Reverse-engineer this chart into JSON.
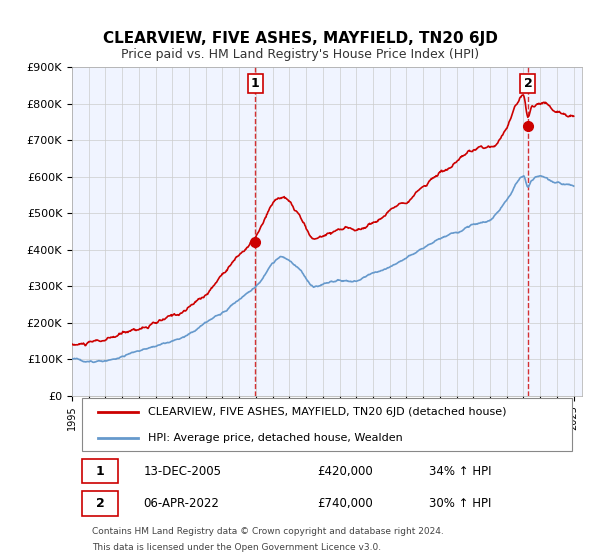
{
  "title": "CLEARVIEW, FIVE ASHES, MAYFIELD, TN20 6JD",
  "subtitle": "Price paid vs. HM Land Registry's House Price Index (HPI)",
  "ylabel": "",
  "ylim": [
    0,
    900000
  ],
  "yticks": [
    0,
    100000,
    200000,
    300000,
    400000,
    500000,
    600000,
    700000,
    800000,
    900000
  ],
  "ytick_labels": [
    "£0",
    "£100K",
    "£200K",
    "£300K",
    "£400K",
    "£500K",
    "£600K",
    "£700K",
    "£800K",
    "£900K"
  ],
  "xlim_start": 1995.0,
  "xlim_end": 2025.5,
  "grid_color": "#cccccc",
  "background_color": "#f0f4ff",
  "plot_bg_color": "#f0f4ff",
  "red_line_color": "#cc0000",
  "blue_line_color": "#6699cc",
  "marker1_x": 2005.95,
  "marker1_y": 420000,
  "marker2_x": 2022.27,
  "marker2_y": 740000,
  "vline1_x": 2005.95,
  "vline2_x": 2022.27,
  "legend_label_red": "CLEARVIEW, FIVE ASHES, MAYFIELD, TN20 6JD (detached house)",
  "legend_label_blue": "HPI: Average price, detached house, Wealden",
  "annotation1_label": "1",
  "annotation2_label": "2",
  "table_row1": [
    "1",
    "13-DEC-2005",
    "£420,000",
    "34% ↑ HPI"
  ],
  "table_row2": [
    "2",
    "06-APR-2022",
    "£740,000",
    "30% ↑ HPI"
  ],
  "footer1": "Contains HM Land Registry data © Crown copyright and database right 2024.",
  "footer2": "This data is licensed under the Open Government Licence v3.0.",
  "title_fontsize": 11,
  "subtitle_fontsize": 9
}
